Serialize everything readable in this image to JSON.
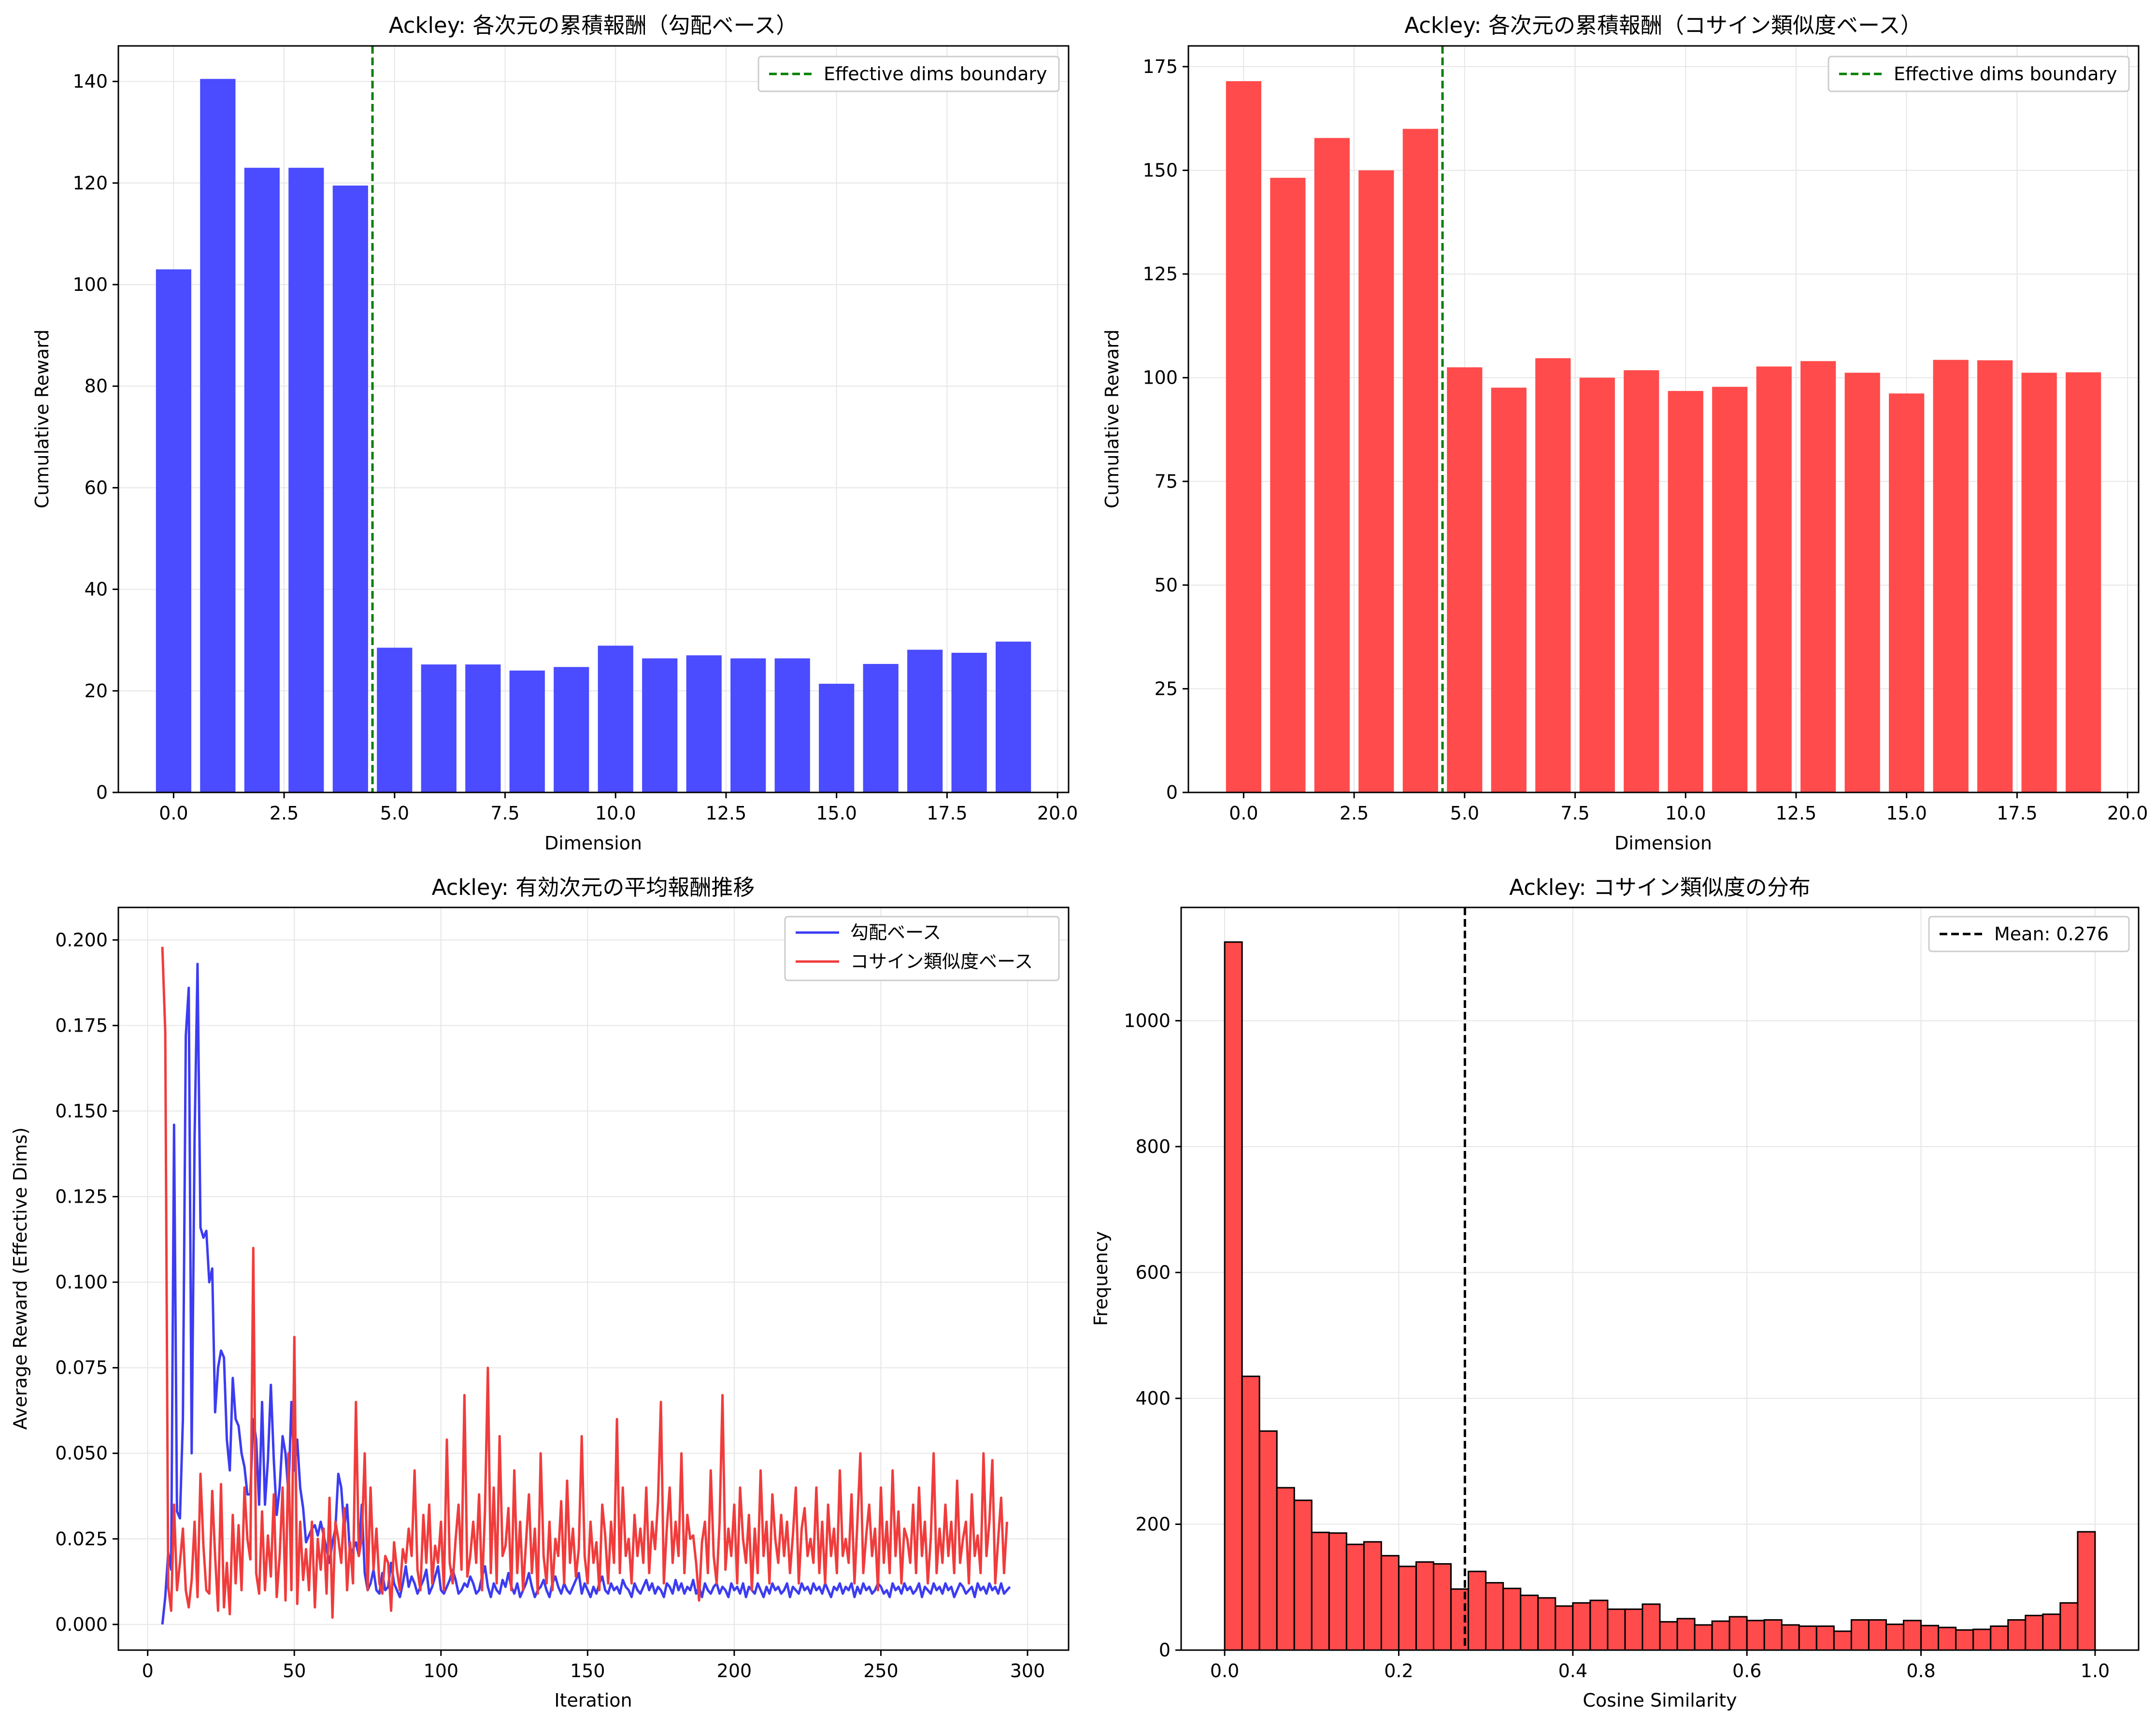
{
  "figure": {
    "panels": [
      {
        "id": "grad",
        "title": "Ackley: 各次元の累積報酬（勾配ベース）"
      },
      {
        "id": "cos",
        "title": "Ackley: 各次元の累積報酬（コサイン類似度ベース）"
      },
      {
        "id": "trend",
        "title": "Ackley: 有効次元の平均報酬推移"
      },
      {
        "id": "hist",
        "title": "Ackley: コサイン類似度の分布"
      }
    ]
  },
  "colors": {
    "blue": "#4b4bff",
    "red": "#ff4b4b",
    "line_blue": "#3c3cf2",
    "line_red": "#f03c3c",
    "green": "#008000",
    "grid": "#e6e6e6"
  },
  "chart_data": [
    {
      "type": "bar",
      "title": "Ackley: 各次元の累積報酬（勾配ベース）",
      "xlabel": "Dimension",
      "ylabel": "Cumulative Reward",
      "xlim": [
        -1.25,
        20.25
      ],
      "ylim": [
        0,
        147
      ],
      "xticks": [
        0.0,
        2.5,
        5.0,
        7.5,
        10.0,
        12.5,
        15.0,
        17.5,
        20.0
      ],
      "xtick_labels": [
        "0.0",
        "2.5",
        "5.0",
        "7.5",
        "10.0",
        "12.5",
        "15.0",
        "17.5",
        "20.0"
      ],
      "yticks": [
        0,
        20,
        40,
        60,
        80,
        100,
        120,
        140
      ],
      "ytick_labels": [
        "0",
        "20",
        "40",
        "60",
        "80",
        "100",
        "120",
        "140"
      ],
      "x": [
        0,
        1,
        2,
        3,
        4,
        5,
        6,
        7,
        8,
        9,
        10,
        11,
        12,
        13,
        14,
        15,
        16,
        17,
        18,
        19
      ],
      "values": [
        103,
        140.5,
        123,
        123,
        119.5,
        28.5,
        25.2,
        25.2,
        24,
        24.7,
        28.9,
        26.4,
        27,
        26.4,
        26.4,
        21.4,
        25.3,
        28.1,
        27.5,
        29.7
      ],
      "bar_width": 0.8,
      "color": "#4b4bff",
      "vline": {
        "x": 4.5,
        "label": "Effective dims boundary",
        "color": "#008000",
        "style": "dashed"
      },
      "legend": {
        "placement": "upper right",
        "entries": [
          "Effective dims boundary"
        ]
      },
      "grid": true
    },
    {
      "type": "bar",
      "title": "Ackley: 各次元の累積報酬（コサイン類似度ベース）",
      "xlabel": "Dimension",
      "ylabel": "Cumulative Reward",
      "xlim": [
        -1.25,
        20.25
      ],
      "ylim": [
        0,
        180
      ],
      "xticks": [
        0.0,
        2.5,
        5.0,
        7.5,
        10.0,
        12.5,
        15.0,
        17.5,
        20.0
      ],
      "xtick_labels": [
        "0.0",
        "2.5",
        "5.0",
        "7.5",
        "10.0",
        "12.5",
        "15.0",
        "17.5",
        "20.0"
      ],
      "yticks": [
        0,
        25,
        50,
        75,
        100,
        125,
        150,
        175
      ],
      "ytick_labels": [
        "0",
        "25",
        "50",
        "75",
        "100",
        "125",
        "150",
        "175"
      ],
      "x": [
        0,
        1,
        2,
        3,
        4,
        5,
        6,
        7,
        8,
        9,
        10,
        11,
        12,
        13,
        14,
        15,
        16,
        17,
        18,
        19
      ],
      "values": [
        171.5,
        148.2,
        157.8,
        150,
        160,
        102.5,
        97.6,
        104.7,
        100,
        101.8,
        96.8,
        97.8,
        102.7,
        104,
        101.2,
        96.2,
        104.3,
        104.2,
        101.2,
        101.3
      ],
      "bar_width": 0.8,
      "color": "#ff4b4b",
      "vline": {
        "x": 4.5,
        "label": "Effective dims boundary",
        "color": "#008000",
        "style": "dashed"
      },
      "legend": {
        "placement": "upper right",
        "entries": [
          "Effective dims boundary"
        ]
      },
      "grid": true
    },
    {
      "type": "line",
      "title": "Ackley: 有効次元の平均報酬推移",
      "xlabel": "Iteration",
      "ylabel": "Average Reward (Effective Dims)",
      "xlim": [
        -10,
        314
      ],
      "ylim": [
        -0.0075,
        0.2095
      ],
      "xticks": [
        0,
        50,
        100,
        150,
        200,
        250,
        300
      ],
      "xtick_labels": [
        "0",
        "50",
        "100",
        "150",
        "200",
        "250",
        "300"
      ],
      "yticks": [
        0.0,
        0.025,
        0.05,
        0.075,
        0.1,
        0.125,
        0.15,
        0.175,
        0.2
      ],
      "ytick_labels": [
        "0.000",
        "0.025",
        "0.050",
        "0.075",
        "0.100",
        "0.125",
        "0.150",
        "0.175",
        "0.200"
      ],
      "x_start": 5,
      "series": [
        {
          "name": "勾配ベース",
          "color": "#3c3cf2",
          "values": [
            0.0,
            0.008,
            0.021,
            0.016,
            0.146,
            0.033,
            0.031,
            0.06,
            0.172,
            0.186,
            0.05,
            0.142,
            0.193,
            0.116,
            0.113,
            0.115,
            0.1,
            0.104,
            0.062,
            0.075,
            0.08,
            0.078,
            0.054,
            0.045,
            0.072,
            0.06,
            0.058,
            0.05,
            0.046,
            0.038,
            0.038,
            0.06,
            0.054,
            0.035,
            0.065,
            0.035,
            0.048,
            0.07,
            0.048,
            0.032,
            0.04,
            0.055,
            0.05,
            0.038,
            0.065,
            0.045,
            0.054,
            0.04,
            0.034,
            0.024,
            0.026,
            0.028,
            0.029,
            0.026,
            0.03,
            0.026,
            0.022,
            0.018,
            0.024,
            0.028,
            0.044,
            0.04,
            0.028,
            0.035,
            0.02,
            0.022,
            0.024,
            0.02,
            0.035,
            0.015,
            0.01,
            0.012,
            0.016,
            0.01,
            0.009,
            0.015,
            0.01,
            0.011,
            0.018,
            0.012,
            0.01,
            0.008,
            0.012,
            0.017,
            0.011,
            0.014,
            0.012,
            0.009,
            0.011,
            0.013,
            0.016,
            0.009,
            0.011,
            0.014,
            0.017,
            0.01,
            0.009,
            0.011,
            0.013,
            0.016,
            0.013,
            0.009,
            0.01,
            0.012,
            0.011,
            0.014,
            0.012,
            0.009,
            0.01,
            0.014,
            0.017,
            0.011,
            0.008,
            0.012,
            0.01,
            0.009,
            0.013,
            0.011,
            0.015,
            0.011,
            0.009,
            0.012,
            0.008,
            0.01,
            0.012,
            0.015,
            0.011,
            0.008,
            0.01,
            0.011,
            0.013,
            0.01,
            0.008,
            0.012,
            0.014,
            0.011,
            0.009,
            0.012,
            0.01,
            0.009,
            0.011,
            0.013,
            0.015,
            0.009,
            0.012,
            0.01,
            0.008,
            0.011,
            0.009,
            0.012,
            0.014,
            0.01,
            0.009,
            0.012,
            0.01,
            0.011,
            0.009,
            0.013,
            0.011,
            0.01,
            0.008,
            0.012,
            0.01,
            0.009,
            0.011,
            0.013,
            0.01,
            0.012,
            0.009,
            0.011,
            0.01,
            0.008,
            0.012,
            0.011,
            0.009,
            0.013,
            0.01,
            0.012,
            0.009,
            0.011,
            0.01,
            0.013,
            0.009,
            0.011,
            0.008,
            0.012,
            0.01,
            0.009,
            0.011,
            0.012,
            0.009,
            0.011,
            0.01,
            0.008,
            0.012,
            0.01,
            0.011,
            0.009,
            0.012,
            0.008,
            0.011,
            0.01,
            0.009,
            0.012,
            0.01,
            0.008,
            0.011,
            0.009,
            0.012,
            0.01,
            0.011,
            0.009,
            0.01,
            0.012,
            0.008,
            0.011,
            0.01,
            0.009,
            0.012,
            0.01,
            0.011,
            0.009,
            0.012,
            0.01,
            0.011,
            0.009,
            0.012,
            0.01,
            0.008,
            0.011,
            0.01,
            0.012,
            0.009,
            0.011,
            0.01,
            0.012,
            0.008,
            0.011,
            0.009,
            0.012,
            0.01,
            0.011,
            0.009,
            0.01,
            0.012,
            0.011,
            0.009,
            0.01,
            0.008,
            0.012,
            0.01,
            0.011,
            0.009,
            0.012,
            0.01,
            0.011,
            0.009,
            0.01,
            0.012,
            0.008,
            0.011,
            0.01,
            0.009,
            0.012,
            0.01,
            0.011,
            0.009,
            0.012,
            0.01,
            0.011,
            0.008,
            0.01,
            0.012,
            0.011,
            0.009,
            0.01,
            0.011,
            0.008,
            0.012,
            0.01,
            0.011,
            0.009,
            0.012,
            0.01,
            0.011,
            0.009,
            0.012,
            0.009,
            0.01,
            0.011
          ]
        },
        {
          "name": "コサイン類似度ベース",
          "color": "#f03c3c",
          "values": [
            0.198,
            0.173,
            0.011,
            0.004,
            0.035,
            0.01,
            0.018,
            0.028,
            0.01,
            0.005,
            0.013,
            0.03,
            0.008,
            0.044,
            0.023,
            0.01,
            0.009,
            0.039,
            0.02,
            0.004,
            0.041,
            0.005,
            0.018,
            0.003,
            0.032,
            0.012,
            0.029,
            0.01,
            0.04,
            0.025,
            0.019,
            0.11,
            0.015,
            0.009,
            0.033,
            0.01,
            0.026,
            0.014,
            0.038,
            0.008,
            0.02,
            0.04,
            0.007,
            0.05,
            0.01,
            0.084,
            0.006,
            0.03,
            0.013,
            0.022,
            0.01,
            0.03,
            0.005,
            0.025,
            0.016,
            0.028,
            0.009,
            0.037,
            0.002,
            0.03,
            0.025,
            0.018,
            0.034,
            0.01,
            0.024,
            0.012,
            0.065,
            0.02,
            0.025,
            0.05,
            0.01,
            0.04,
            0.016,
            0.028,
            0.012,
            0.009,
            0.02,
            0.018,
            0.004,
            0.024,
            0.016,
            0.01,
            0.022,
            0.018,
            0.028,
            0.02,
            0.045,
            0.016,
            0.01,
            0.032,
            0.018,
            0.035,
            0.012,
            0.023,
            0.018,
            0.03,
            0.01,
            0.054,
            0.018,
            0.012,
            0.025,
            0.035,
            0.016,
            0.067,
            0.014,
            0.02,
            0.03,
            0.018,
            0.038,
            0.01,
            0.033,
            0.075,
            0.015,
            0.04,
            0.012,
            0.055,
            0.02,
            0.023,
            0.034,
            0.01,
            0.045,
            0.015,
            0.03,
            0.01,
            0.024,
            0.038,
            0.015,
            0.028,
            0.009,
            0.05,
            0.02,
            0.012,
            0.03,
            0.01,
            0.025,
            0.02,
            0.036,
            0.012,
            0.042,
            0.018,
            0.028,
            0.014,
            0.022,
            0.055,
            0.02,
            0.012,
            0.03,
            0.018,
            0.024,
            0.01,
            0.035,
            0.026,
            0.012,
            0.03,
            0.018,
            0.06,
            0.015,
            0.04,
            0.02,
            0.025,
            0.012,
            0.032,
            0.02,
            0.028,
            0.018,
            0.04,
            0.015,
            0.03,
            0.022,
            0.036,
            0.065,
            0.012,
            0.028,
            0.04,
            0.018,
            0.03,
            0.02,
            0.05,
            0.015,
            0.032,
            0.025,
            0.026,
            0.018,
            0.007,
            0.024,
            0.03,
            0.015,
            0.045,
            0.02,
            0.012,
            0.03,
            0.067,
            0.016,
            0.028,
            0.02,
            0.035,
            0.012,
            0.04,
            0.025,
            0.018,
            0.032,
            0.01,
            0.028,
            0.015,
            0.045,
            0.02,
            0.03,
            0.012,
            0.038,
            0.025,
            0.018,
            0.032,
            0.02,
            0.03,
            0.015,
            0.026,
            0.04,
            0.012,
            0.028,
            0.034,
            0.02,
            0.025,
            0.018,
            0.04,
            0.015,
            0.03,
            0.012,
            0.035,
            0.02,
            0.028,
            0.015,
            0.045,
            0.02,
            0.025,
            0.018,
            0.038,
            0.012,
            0.03,
            0.05,
            0.015,
            0.026,
            0.035,
            0.02,
            0.028,
            0.01,
            0.04,
            0.018,
            0.03,
            0.015,
            0.045,
            0.02,
            0.033,
            0.012,
            0.028,
            0.025,
            0.018,
            0.035,
            0.015,
            0.04,
            0.02,
            0.03,
            0.012,
            0.025,
            0.05,
            0.015,
            0.028,
            0.018,
            0.035,
            0.02,
            0.03,
            0.015,
            0.042,
            0.018,
            0.025,
            0.03,
            0.012,
            0.038,
            0.02,
            0.026,
            0.015,
            0.05,
            0.02,
            0.03,
            0.048,
            0.012,
            0.025,
            0.037,
            0.015,
            0.03
          ]
        }
      ],
      "legend": {
        "placement": "upper right",
        "entries": [
          "勾配ベース",
          "コサイン類似度ベース"
        ]
      },
      "grid": true
    },
    {
      "type": "bar",
      "subtype": "histogram",
      "title": "Ackley: コサイン類似度の分布",
      "xlabel": "Cosine Similarity",
      "ylabel": "Frequency",
      "xlim": [
        -0.05,
        1.05
      ],
      "ylim": [
        0,
        1180
      ],
      "xticks": [
        0.0,
        0.2,
        0.4,
        0.6,
        0.8,
        1.0
      ],
      "xtick_labels": [
        "0.0",
        "0.2",
        "0.4",
        "0.6",
        "0.8",
        "1.0"
      ],
      "yticks": [
        0,
        200,
        400,
        600,
        800,
        1000
      ],
      "ytick_labels": [
        "0",
        "200",
        "400",
        "600",
        "800",
        "1000"
      ],
      "bin_start": 0.0,
      "bin_width": 0.02,
      "values": [
        1125,
        435,
        348,
        258,
        238,
        187,
        186,
        168,
        172,
        150,
        133,
        140,
        137,
        97,
        125,
        107,
        98,
        87,
        83,
        70,
        75,
        79,
        65,
        65,
        73,
        45,
        50,
        40,
        46,
        53,
        47,
        48,
        40,
        38,
        38,
        30,
        48,
        48,
        41,
        47,
        39,
        36,
        32,
        33,
        38,
        48,
        55,
        57,
        75,
        188
      ],
      "color": "#ff4b4b",
      "edgecolor": "#000000",
      "vline": {
        "x": 0.276,
        "label": "Mean: 0.276",
        "color": "#000000",
        "style": "dashed"
      },
      "legend": {
        "placement": "upper right",
        "entries": [
          "Mean: 0.276"
        ]
      },
      "grid": true
    }
  ]
}
